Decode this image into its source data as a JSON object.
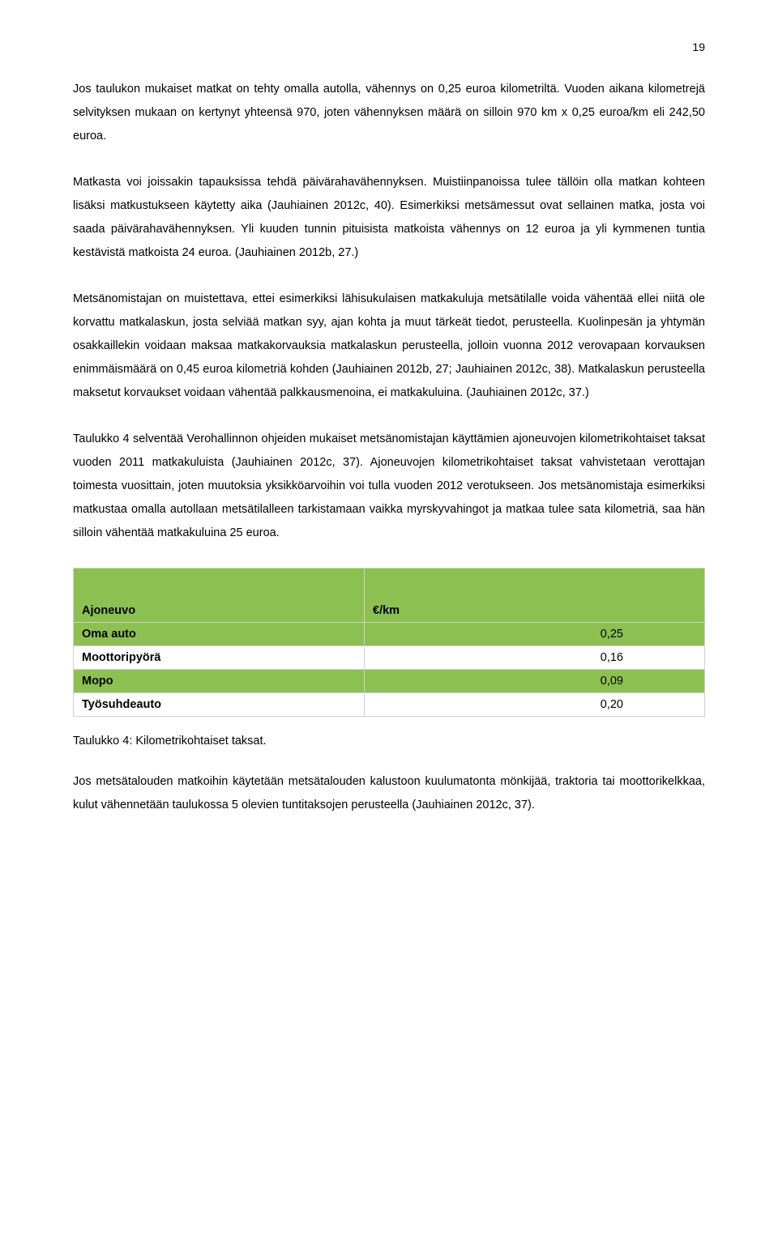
{
  "page_number": "19",
  "paragraphs": {
    "p1": "Jos taulukon mukaiset matkat on tehty omalla autolla, vähennys on 0,25 euroa kilometriltä. Vuoden aikana kilometrejä selvityksen mukaan on kertynyt yhteensä 970, joten vähennyksen määrä on silloin 970 km x 0,25 euroa/km eli 242,50 euroa.",
    "p2": "Matkasta voi joissakin tapauksissa tehdä päivärahavähennyksen. Muistiinpanoissa tulee tällöin olla matkan kohteen lisäksi matkustukseen käytetty aika (Jauhiainen 2012c, 40). Esimerkiksi metsämessut ovat sellainen matka, josta voi saada päivärahavähennyksen. Yli kuuden tunnin pituisista matkoista vähennys on 12 euroa ja yli kymmenen tuntia kestävistä matkoista 24 euroa. (Jauhiainen 2012b, 27.)",
    "p3": "Metsänomistajan on muistettava, ettei esimerkiksi lähisukulaisen matkakuluja metsätilalle voida vähentää ellei niitä ole korvattu matkalaskun, josta selviää matkan syy, ajan kohta ja muut tärkeät tiedot, perusteella. Kuolinpesän ja yhtymän osakkaillekin voidaan maksaa matkakorvauksia matkalaskun perusteella, jolloin vuonna 2012 verovapaan korvauksen enimmäismäärä on 0,45 euroa kilometriä kohden (Jauhiainen 2012b, 27; Jauhiainen 2012c, 38). Matkalaskun perusteella maksetut korvaukset voidaan vähentää palkkausmenoina, ei matkakuluina. (Jauhiainen 2012c, 37.)",
    "p4": "Taulukko 4 selventää Verohallinnon ohjeiden mukaiset metsänomistajan käyttämien ajoneuvojen kilometrikohtaiset taksat vuoden 2011 matkakuluista (Jauhiainen 2012c, 37). Ajoneuvojen kilometrikohtaiset taksat vahvistetaan verottajan toimesta vuosittain, joten muutoksia yksikköarvoihin voi tulla vuoden 2012 verotukseen. Jos metsänomistaja esimerkiksi matkustaa omalla autollaan metsätilalleen tarkistamaan vaikka myrskyvahingot ja matkaa tulee sata kilometriä, saa hän silloin vähentää matkakuluina 25 euroa.",
    "p5": "Jos metsätalouden matkoihin käytetään metsätalouden kalustoon kuulumatonta mönkijää, traktoria tai moottorikelkkaa, kulut vähennetään taulukossa 5 olevien tuntitaksojen perusteella (Jauhiainen 2012c, 37)."
  },
  "table": {
    "header_col1": "Ajoneuvo",
    "header_col2": "€/km",
    "rows": [
      {
        "vehicle": "Oma auto",
        "rate": "0,25",
        "bg": "#8cc152"
      },
      {
        "vehicle": "Moottoripyörä",
        "rate": "0,16",
        "bg": "#ffffff"
      },
      {
        "vehicle": "Mopo",
        "rate": "0,09",
        "bg": "#8cc152"
      },
      {
        "vehicle": "Työsuhdeauto",
        "rate": "0,20",
        "bg": "#ffffff"
      }
    ],
    "header_bg": "#8cc152",
    "caption": "Taulukko 4: Kilometrikohtaiset taksat."
  }
}
